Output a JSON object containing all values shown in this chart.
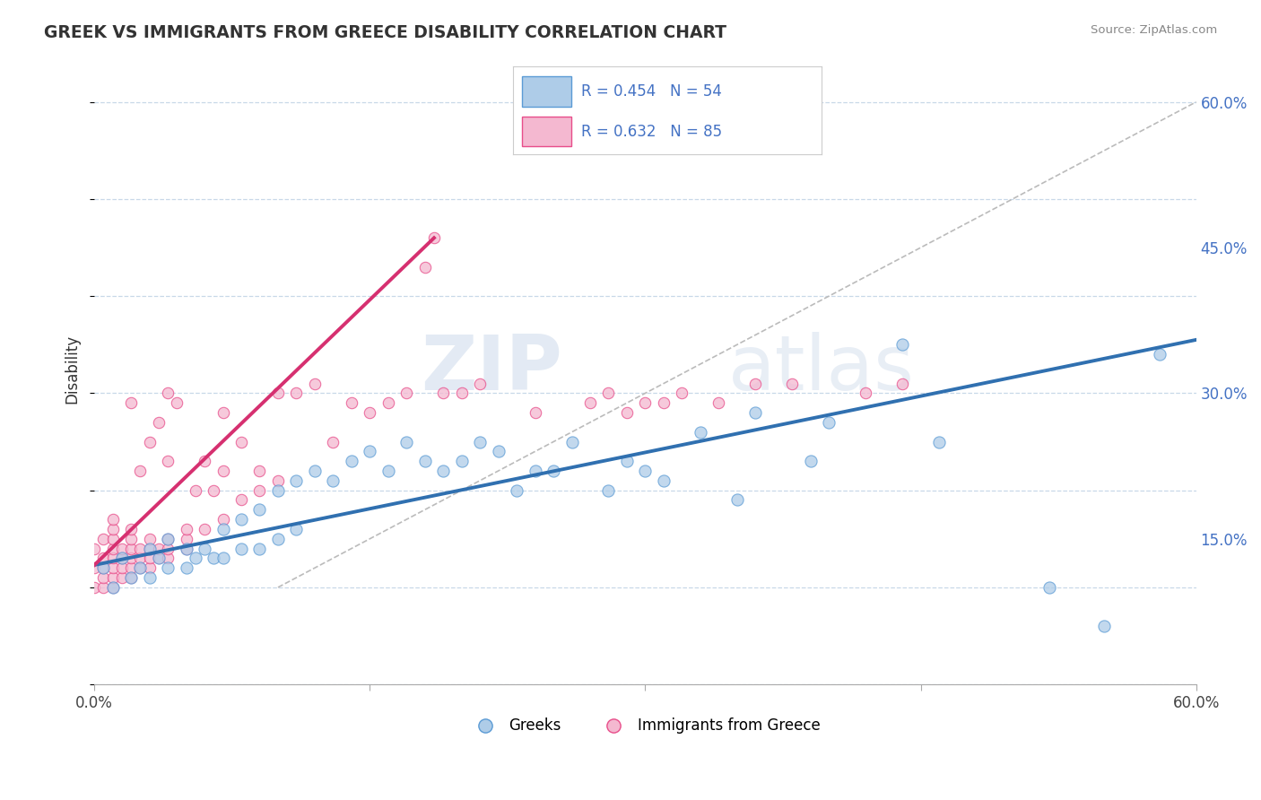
{
  "title": "GREEK VS IMMIGRANTS FROM GREECE DISABILITY CORRELATION CHART",
  "source": "Source: ZipAtlas.com",
  "ylabel": "Disability",
  "xmin": 0.0,
  "xmax": 0.6,
  "ymin": 0.0,
  "ymax": 0.65,
  "legend_blue_label": "R = 0.454   N = 54",
  "legend_pink_label": "R = 0.632   N = 85",
  "blue_color": "#5b9bd5",
  "pink_color": "#e84d8a",
  "blue_fill_color": "#aecce8",
  "pink_fill_color": "#f4b8d0",
  "blue_line_color": "#3070b0",
  "pink_line_color": "#d63070",
  "watermark_zip": "ZIP",
  "watermark_atlas": "atlas",
  "legend_label_blue": "Greeks",
  "legend_label_pink": "Immigrants from Greece",
  "blue_line_x0": 0.0,
  "blue_line_y0": 0.123,
  "blue_line_x1": 0.6,
  "blue_line_y1": 0.355,
  "pink_line_x0": 0.0,
  "pink_line_y0": 0.123,
  "pink_line_x1": 0.185,
  "pink_line_y1": 0.46,
  "blue_points_x": [
    0.005,
    0.01,
    0.015,
    0.02,
    0.025,
    0.03,
    0.03,
    0.035,
    0.04,
    0.04,
    0.05,
    0.05,
    0.055,
    0.06,
    0.065,
    0.07,
    0.07,
    0.08,
    0.08,
    0.09,
    0.09,
    0.1,
    0.1,
    0.11,
    0.11,
    0.12,
    0.13,
    0.14,
    0.15,
    0.16,
    0.17,
    0.18,
    0.19,
    0.2,
    0.21,
    0.22,
    0.23,
    0.24,
    0.25,
    0.26,
    0.28,
    0.29,
    0.3,
    0.31,
    0.33,
    0.35,
    0.36,
    0.39,
    0.4,
    0.44,
    0.46,
    0.52,
    0.55,
    0.58
  ],
  "blue_points_y": [
    0.12,
    0.1,
    0.13,
    0.11,
    0.12,
    0.11,
    0.14,
    0.13,
    0.12,
    0.15,
    0.12,
    0.14,
    0.13,
    0.14,
    0.13,
    0.13,
    0.16,
    0.14,
    0.17,
    0.14,
    0.18,
    0.15,
    0.2,
    0.16,
    0.21,
    0.22,
    0.21,
    0.23,
    0.24,
    0.22,
    0.25,
    0.23,
    0.22,
    0.23,
    0.25,
    0.24,
    0.2,
    0.22,
    0.22,
    0.25,
    0.2,
    0.23,
    0.22,
    0.21,
    0.26,
    0.19,
    0.28,
    0.23,
    0.27,
    0.35,
    0.25,
    0.1,
    0.06,
    0.34
  ],
  "pink_points_x": [
    0.0,
    0.0,
    0.0,
    0.005,
    0.005,
    0.005,
    0.005,
    0.005,
    0.01,
    0.01,
    0.01,
    0.01,
    0.01,
    0.01,
    0.01,
    0.01,
    0.015,
    0.015,
    0.015,
    0.015,
    0.02,
    0.02,
    0.02,
    0.02,
    0.02,
    0.02,
    0.02,
    0.025,
    0.025,
    0.025,
    0.025,
    0.03,
    0.03,
    0.03,
    0.03,
    0.03,
    0.035,
    0.035,
    0.035,
    0.04,
    0.04,
    0.04,
    0.04,
    0.04,
    0.045,
    0.05,
    0.05,
    0.05,
    0.055,
    0.06,
    0.06,
    0.065,
    0.07,
    0.07,
    0.07,
    0.08,
    0.08,
    0.09,
    0.09,
    0.1,
    0.1,
    0.11,
    0.12,
    0.13,
    0.14,
    0.15,
    0.16,
    0.17,
    0.18,
    0.185,
    0.19,
    0.2,
    0.21,
    0.24,
    0.27,
    0.28,
    0.29,
    0.3,
    0.31,
    0.32,
    0.34,
    0.36,
    0.38,
    0.42,
    0.44
  ],
  "pink_points_y": [
    0.1,
    0.12,
    0.14,
    0.1,
    0.11,
    0.12,
    0.13,
    0.15,
    0.1,
    0.11,
    0.12,
    0.13,
    0.14,
    0.15,
    0.16,
    0.17,
    0.11,
    0.12,
    0.13,
    0.14,
    0.11,
    0.12,
    0.13,
    0.14,
    0.15,
    0.16,
    0.29,
    0.12,
    0.13,
    0.14,
    0.22,
    0.12,
    0.13,
    0.14,
    0.15,
    0.25,
    0.13,
    0.14,
    0.27,
    0.13,
    0.14,
    0.15,
    0.23,
    0.3,
    0.29,
    0.14,
    0.15,
    0.16,
    0.2,
    0.16,
    0.23,
    0.2,
    0.17,
    0.22,
    0.28,
    0.19,
    0.25,
    0.2,
    0.22,
    0.21,
    0.3,
    0.3,
    0.31,
    0.25,
    0.29,
    0.28,
    0.29,
    0.3,
    0.43,
    0.46,
    0.3,
    0.3,
    0.31,
    0.28,
    0.29,
    0.3,
    0.28,
    0.29,
    0.29,
    0.3,
    0.29,
    0.31,
    0.31,
    0.3,
    0.31
  ]
}
